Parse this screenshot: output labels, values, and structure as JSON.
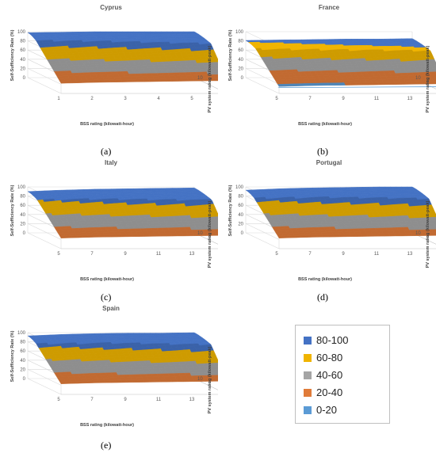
{
  "bands": [
    {
      "range": "80-100",
      "color": "#4472c4"
    },
    {
      "range": "60-80",
      "color": "#f0b400"
    },
    {
      "range": "40-60",
      "color": "#a5a5a5"
    },
    {
      "range": "20-40",
      "color": "#e07b39"
    },
    {
      "range": "0-20",
      "color": "#5b9bd5"
    }
  ],
  "chart_data": [
    {
      "type": "surface",
      "title": "Cyprus",
      "caption": "(a)",
      "xlabel": "BSS rating (kilowatt-hour)",
      "ylabel": "PV system rating (kilowatt-peak)",
      "zlabel": "Self-Sufficiency Rate (%)",
      "x_ticks": [
        "1",
        "2",
        "3",
        "4",
        "5",
        "6"
      ],
      "y_ticks": [
        "1",
        "4",
        "7",
        "10"
      ],
      "z_ticks": [
        "0",
        "20",
        "40",
        "60",
        "80",
        "100"
      ],
      "x_range": [
        1,
        6
      ],
      "y_range": [
        1,
        10
      ],
      "zlim": [
        0,
        100
      ],
      "back_profile": [
        98,
        99,
        100,
        100,
        100,
        100
      ],
      "front_profile": [
        22,
        24,
        25,
        26,
        27,
        28
      ],
      "bend_fraction": 0.25,
      "has_0_20": false
    },
    {
      "type": "surface",
      "title": "France",
      "caption": "(b)",
      "xlabel": "BSS rating (kilowatt-hour)",
      "ylabel": "PV system rating (kilowatt-peak)",
      "zlabel": "Self-Sufficiency Rate (%)",
      "x_ticks": [
        "5",
        "7",
        "9",
        "11",
        "13",
        "15"
      ],
      "y_ticks": [
        "1",
        "4",
        "7",
        "10"
      ],
      "z_ticks": [
        "0",
        "20",
        "40",
        "60",
        "80",
        "100"
      ],
      "x_range": [
        5,
        15
      ],
      "y_range": [
        1,
        10
      ],
      "zlim": [
        0,
        100
      ],
      "back_profile": [
        81,
        82,
        83,
        84,
        84,
        85
      ],
      "front_profile": [
        15,
        17,
        18,
        19,
        20,
        21
      ],
      "bend_fraction": 0.3,
      "has_0_20": true
    },
    {
      "type": "surface",
      "title": "Italy",
      "caption": "(c)",
      "xlabel": "BSS rating (kilowatt-hour)",
      "ylabel": "PV system rating (kilowatt-peak)",
      "zlabel": "Self-Sufficiency Rate (%)",
      "x_ticks": [
        "5",
        "7",
        "9",
        "11",
        "13",
        "15"
      ],
      "y_ticks": [
        "1",
        "4",
        "7",
        "10"
      ],
      "z_ticks": [
        "0",
        "20",
        "40",
        "60",
        "80",
        "100"
      ],
      "x_range": [
        5,
        15
      ],
      "y_range": [
        1,
        10
      ],
      "zlim": [
        0,
        100
      ],
      "back_profile": [
        90,
        93,
        95,
        96,
        97,
        98
      ],
      "front_profile": [
        23,
        25,
        26,
        27,
        28,
        29
      ],
      "bend_fraction": 0.28,
      "has_0_20": false
    },
    {
      "type": "surface",
      "title": "Portugal",
      "caption": "(d)",
      "xlabel": "BSS rating (kilowatt-hour)",
      "ylabel": "PV system rating (kilowatt-peak)",
      "zlabel": "Self-Sufficiency Rate (%)",
      "x_ticks": [
        "5",
        "7",
        "9",
        "11",
        "13",
        "15"
      ],
      "y_ticks": [
        "1",
        "4",
        "7",
        "10"
      ],
      "z_ticks": [
        "0",
        "20",
        "40",
        "60",
        "80",
        "100"
      ],
      "x_range": [
        5,
        15
      ],
      "y_range": [
        1,
        10
      ],
      "zlim": [
        0,
        100
      ],
      "back_profile": [
        93,
        96,
        98,
        99,
        100,
        100
      ],
      "front_profile": [
        23,
        25,
        26,
        27,
        28,
        29
      ],
      "bend_fraction": 0.25,
      "has_0_20": false
    },
    {
      "type": "surface",
      "title": "Spain",
      "caption": "(e)",
      "xlabel": "BSS rating (kilowatt-hour)",
      "ylabel": "PV system rating (kilowatt-peak)",
      "zlabel": "Self-Sufficiency Rate (%)",
      "x_ticks": [
        "5",
        "7",
        "9",
        "11",
        "13",
        "15"
      ],
      "y_ticks": [
        "1",
        "4",
        "7",
        "10"
      ],
      "z_ticks": [
        "0",
        "20",
        "40",
        "60",
        "80",
        "100"
      ],
      "x_range": [
        5,
        15
      ],
      "y_range": [
        1,
        10
      ],
      "zlim": [
        0,
        100
      ],
      "back_profile": [
        93,
        96,
        98,
        99,
        99,
        100
      ],
      "front_profile": [
        23,
        25,
        26,
        27,
        28,
        29
      ],
      "bend_fraction": 0.25,
      "has_0_20": false
    }
  ]
}
